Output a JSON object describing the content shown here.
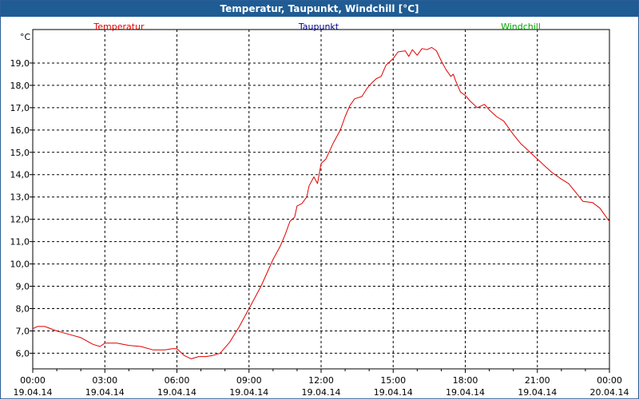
{
  "window": {
    "title": "Temperatur, Taupunkt, Windchill [°C]"
  },
  "chart_data": {
    "type": "line",
    "title": "Temperatur, Taupunkt, Windchill [°C]",
    "ylabel": "°C",
    "ylim": [
      5.3,
      20.5
    ],
    "xlim_hours": [
      0,
      24
    ],
    "grid": true,
    "legend_position": "top",
    "y_ticks": [
      "6,0",
      "7,0",
      "8,0",
      "9,0",
      "10,0",
      "11,0",
      "12,0",
      "13,0",
      "14,0",
      "15,0",
      "16,0",
      "17,0",
      "18,0",
      "19,0"
    ],
    "x_ticks": [
      {
        "time": "00:00",
        "date": "19.04.14"
      },
      {
        "time": "03:00",
        "date": "19.04.14"
      },
      {
        "time": "06:00",
        "date": "19.04.14"
      },
      {
        "time": "09:00",
        "date": "19.04.14"
      },
      {
        "time": "12:00",
        "date": "19.04.14"
      },
      {
        "time": "15:00",
        "date": "19.04.14"
      },
      {
        "time": "18:00",
        "date": "19.04.14"
      },
      {
        "time": "21:00",
        "date": "19.04.14"
      },
      {
        "time": "00:00",
        "date": "20.04.14"
      }
    ],
    "legend": [
      {
        "name": "Temperatur",
        "color": "#e00000"
      },
      {
        "name": "Taupunkt",
        "color": "#00008b"
      },
      {
        "name": "Windchill",
        "color": "#00aa00"
      }
    ],
    "series": [
      {
        "name": "Temperatur",
        "color": "#e00000",
        "points": [
          [
            0.0,
            7.1
          ],
          [
            0.2,
            7.2
          ],
          [
            0.5,
            7.2
          ],
          [
            1.0,
            7.0
          ],
          [
            1.5,
            6.85
          ],
          [
            2.0,
            6.7
          ],
          [
            2.5,
            6.4
          ],
          [
            2.8,
            6.3
          ],
          [
            3.0,
            6.45
          ],
          [
            3.5,
            6.45
          ],
          [
            4.0,
            6.35
          ],
          [
            4.5,
            6.3
          ],
          [
            5.0,
            6.15
          ],
          [
            5.5,
            6.15
          ],
          [
            5.8,
            6.2
          ],
          [
            6.0,
            6.2
          ],
          [
            6.3,
            5.9
          ],
          [
            6.6,
            5.75
          ],
          [
            6.9,
            5.85
          ],
          [
            7.2,
            5.85
          ],
          [
            7.5,
            5.9
          ],
          [
            7.8,
            6.0
          ],
          [
            8.2,
            6.5
          ],
          [
            8.6,
            7.2
          ],
          [
            9.0,
            8.0
          ],
          [
            9.5,
            9.0
          ],
          [
            10.0,
            10.2
          ],
          [
            10.3,
            10.8
          ],
          [
            10.5,
            11.3
          ],
          [
            10.7,
            11.9
          ],
          [
            10.9,
            12.1
          ],
          [
            11.0,
            12.6
          ],
          [
            11.2,
            12.7
          ],
          [
            11.4,
            13.0
          ],
          [
            11.5,
            13.5
          ],
          [
            11.7,
            13.9
          ],
          [
            11.85,
            13.6
          ],
          [
            12.0,
            14.5
          ],
          [
            12.2,
            14.7
          ],
          [
            12.5,
            15.4
          ],
          [
            12.8,
            16.0
          ],
          [
            13.0,
            16.6
          ],
          [
            13.2,
            17.1
          ],
          [
            13.4,
            17.4
          ],
          [
            13.7,
            17.5
          ],
          [
            13.9,
            17.85
          ],
          [
            14.1,
            18.1
          ],
          [
            14.3,
            18.3
          ],
          [
            14.5,
            18.4
          ],
          [
            14.7,
            18.9
          ],
          [
            15.0,
            19.2
          ],
          [
            15.2,
            19.5
          ],
          [
            15.5,
            19.55
          ],
          [
            15.65,
            19.3
          ],
          [
            15.8,
            19.6
          ],
          [
            16.0,
            19.35
          ],
          [
            16.2,
            19.65
          ],
          [
            16.4,
            19.6
          ],
          [
            16.6,
            19.7
          ],
          [
            16.8,
            19.55
          ],
          [
            17.0,
            19.1
          ],
          [
            17.2,
            18.7
          ],
          [
            17.4,
            18.4
          ],
          [
            17.5,
            18.5
          ],
          [
            17.6,
            18.2
          ],
          [
            17.8,
            17.7
          ],
          [
            18.0,
            17.55
          ],
          [
            18.2,
            17.3
          ],
          [
            18.5,
            17.0
          ],
          [
            18.8,
            17.15
          ],
          [
            19.0,
            16.9
          ],
          [
            19.3,
            16.6
          ],
          [
            19.6,
            16.4
          ],
          [
            20.0,
            15.8
          ],
          [
            20.3,
            15.4
          ],
          [
            20.7,
            15.0
          ],
          [
            21.0,
            14.7
          ],
          [
            21.3,
            14.4
          ],
          [
            21.6,
            14.1
          ],
          [
            22.0,
            13.8
          ],
          [
            22.3,
            13.6
          ],
          [
            22.6,
            13.2
          ],
          [
            22.9,
            12.8
          ],
          [
            23.3,
            12.75
          ],
          [
            23.6,
            12.5
          ],
          [
            24.0,
            11.9
          ]
        ]
      }
    ]
  }
}
